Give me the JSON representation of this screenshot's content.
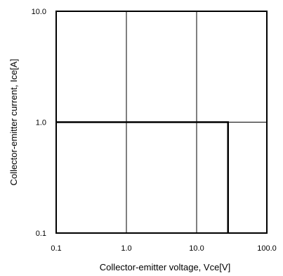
{
  "chart_data": {
    "type": "line",
    "title": "",
    "xlabel": "Collector-emitter voltage, Vce[V]",
    "ylabel": "Collector-emitter current, Ice[A]",
    "x_scale": "log",
    "y_scale": "log",
    "xlim": [
      0.1,
      100
    ],
    "ylim": [
      0.1,
      10
    ],
    "x_ticks": [
      0.1,
      1,
      10,
      100
    ],
    "y_ticks": [
      0.1,
      1,
      10
    ],
    "x_tick_labels": [
      "0.1",
      "1.0",
      "10.0",
      "100.0"
    ],
    "y_tick_labels": [
      "0.1",
      "1.0",
      "10.0"
    ],
    "grid": true,
    "legend": "none",
    "series": [
      {
        "x": [
          0.1,
          28,
          28
        ],
        "y": [
          1.0,
          1.0,
          0.1
        ],
        "color": "#000000"
      }
    ]
  }
}
